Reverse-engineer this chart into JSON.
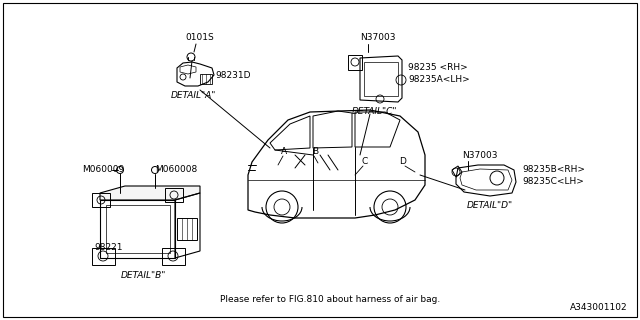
{
  "bg_color": "#ffffff",
  "diagram_id": "A343001102",
  "note_text": "Please refer to FIG.810 about harness of air bag.",
  "labels": {
    "detail_a": "DETAIL\"A\"",
    "detail_b": "DETAIL\"B\"",
    "detail_c": "DETAIL\"C\"",
    "detail_d": "DETAIL\"D\"",
    "part_0101s": "0101S",
    "part_98231d": "98231D",
    "part_98221": "98221",
    "part_m060008": "M060008",
    "part_m060009": "M060009",
    "part_n37003_c": "N37003",
    "part_98235_rh": "98235 <RH>",
    "part_98235a_lh": "98235A<LH>",
    "part_n37003_d": "N37003",
    "part_98235b_rh": "98235B<RH>",
    "part_98235c_lh": "98235C<LH>",
    "point_a": "A",
    "point_b": "B",
    "point_c": "C",
    "point_d": "D"
  },
  "line_color": "#000000",
  "text_color": "#1a1a1a",
  "font_size": 7,
  "small_font_size": 6.5
}
